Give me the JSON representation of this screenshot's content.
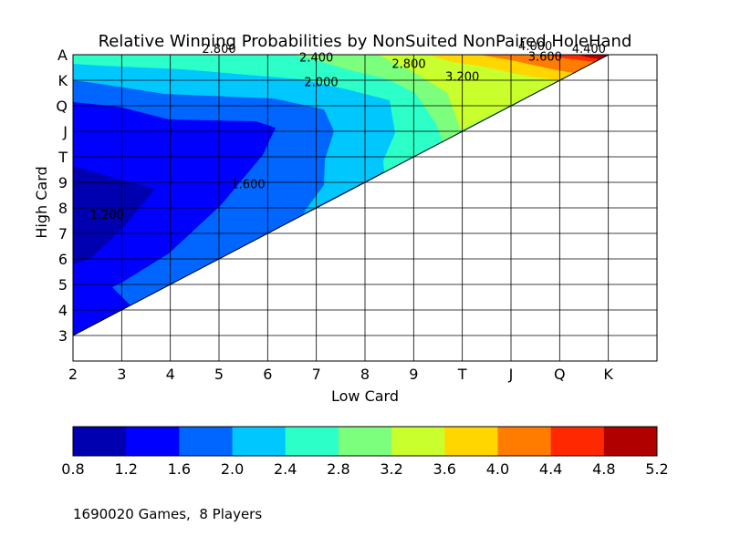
{
  "chart_data": {
    "type": "contour",
    "title": "Relative Winning Probabilities by NonSuited NonPaired HoleHand",
    "xlabel": "Low Card",
    "ylabel": "High Card",
    "x_ticks": [
      "2",
      "3",
      "4",
      "5",
      "6",
      "7",
      "8",
      "9",
      "T",
      "J",
      "Q",
      "K"
    ],
    "y_ticks": [
      "3",
      "4",
      "5",
      "6",
      "7",
      "8",
      "9",
      "T",
      "J",
      "Q",
      "K",
      "A"
    ],
    "grid": true,
    "colorbar": {
      "levels": [
        0.8,
        1.2,
        1.6,
        2.0,
        2.4,
        2.8,
        3.2,
        3.6,
        4.0,
        4.4,
        4.8,
        5.2
      ],
      "tick_labels": [
        "0.8",
        "1.2",
        "1.6",
        "2.0",
        "2.4",
        "2.8",
        "3.2",
        "3.6",
        "4.0",
        "4.4",
        "4.8",
        "5.2"
      ],
      "colors": [
        "#0000b0",
        "#0000ff",
        "#0066ff",
        "#00c8ff",
        "#2cffc8",
        "#7cff7c",
        "#c8ff2c",
        "#ffd600",
        "#ff7c00",
        "#ff2800",
        "#b00000"
      ]
    },
    "contour_labels": [
      {
        "text": "1.200",
        "x": 2.7,
        "y": 7.7
      },
      {
        "text": "1.600",
        "x": 5.6,
        "y": 8.9
      },
      {
        "text": "2.000",
        "x": 7.1,
        "y": 12.9
      },
      {
        "text": "2.400",
        "x": 7.0,
        "y": 13.85
      },
      {
        "text": "2.800",
        "x": 5.0,
        "y": 14.2
      },
      {
        "text": "2.800",
        "x": 8.9,
        "y": 13.6
      },
      {
        "text": "3.200",
        "x": 10.0,
        "y": 13.1
      },
      {
        "text": "3.600",
        "x": 11.7,
        "y": 13.9
      },
      {
        "text": "4.000",
        "x": 11.5,
        "y": 14.3
      },
      {
        "text": "4.400",
        "x": 12.6,
        "y": 14.2
      }
    ]
  },
  "footnote": "1690020 Games,  8 Players"
}
